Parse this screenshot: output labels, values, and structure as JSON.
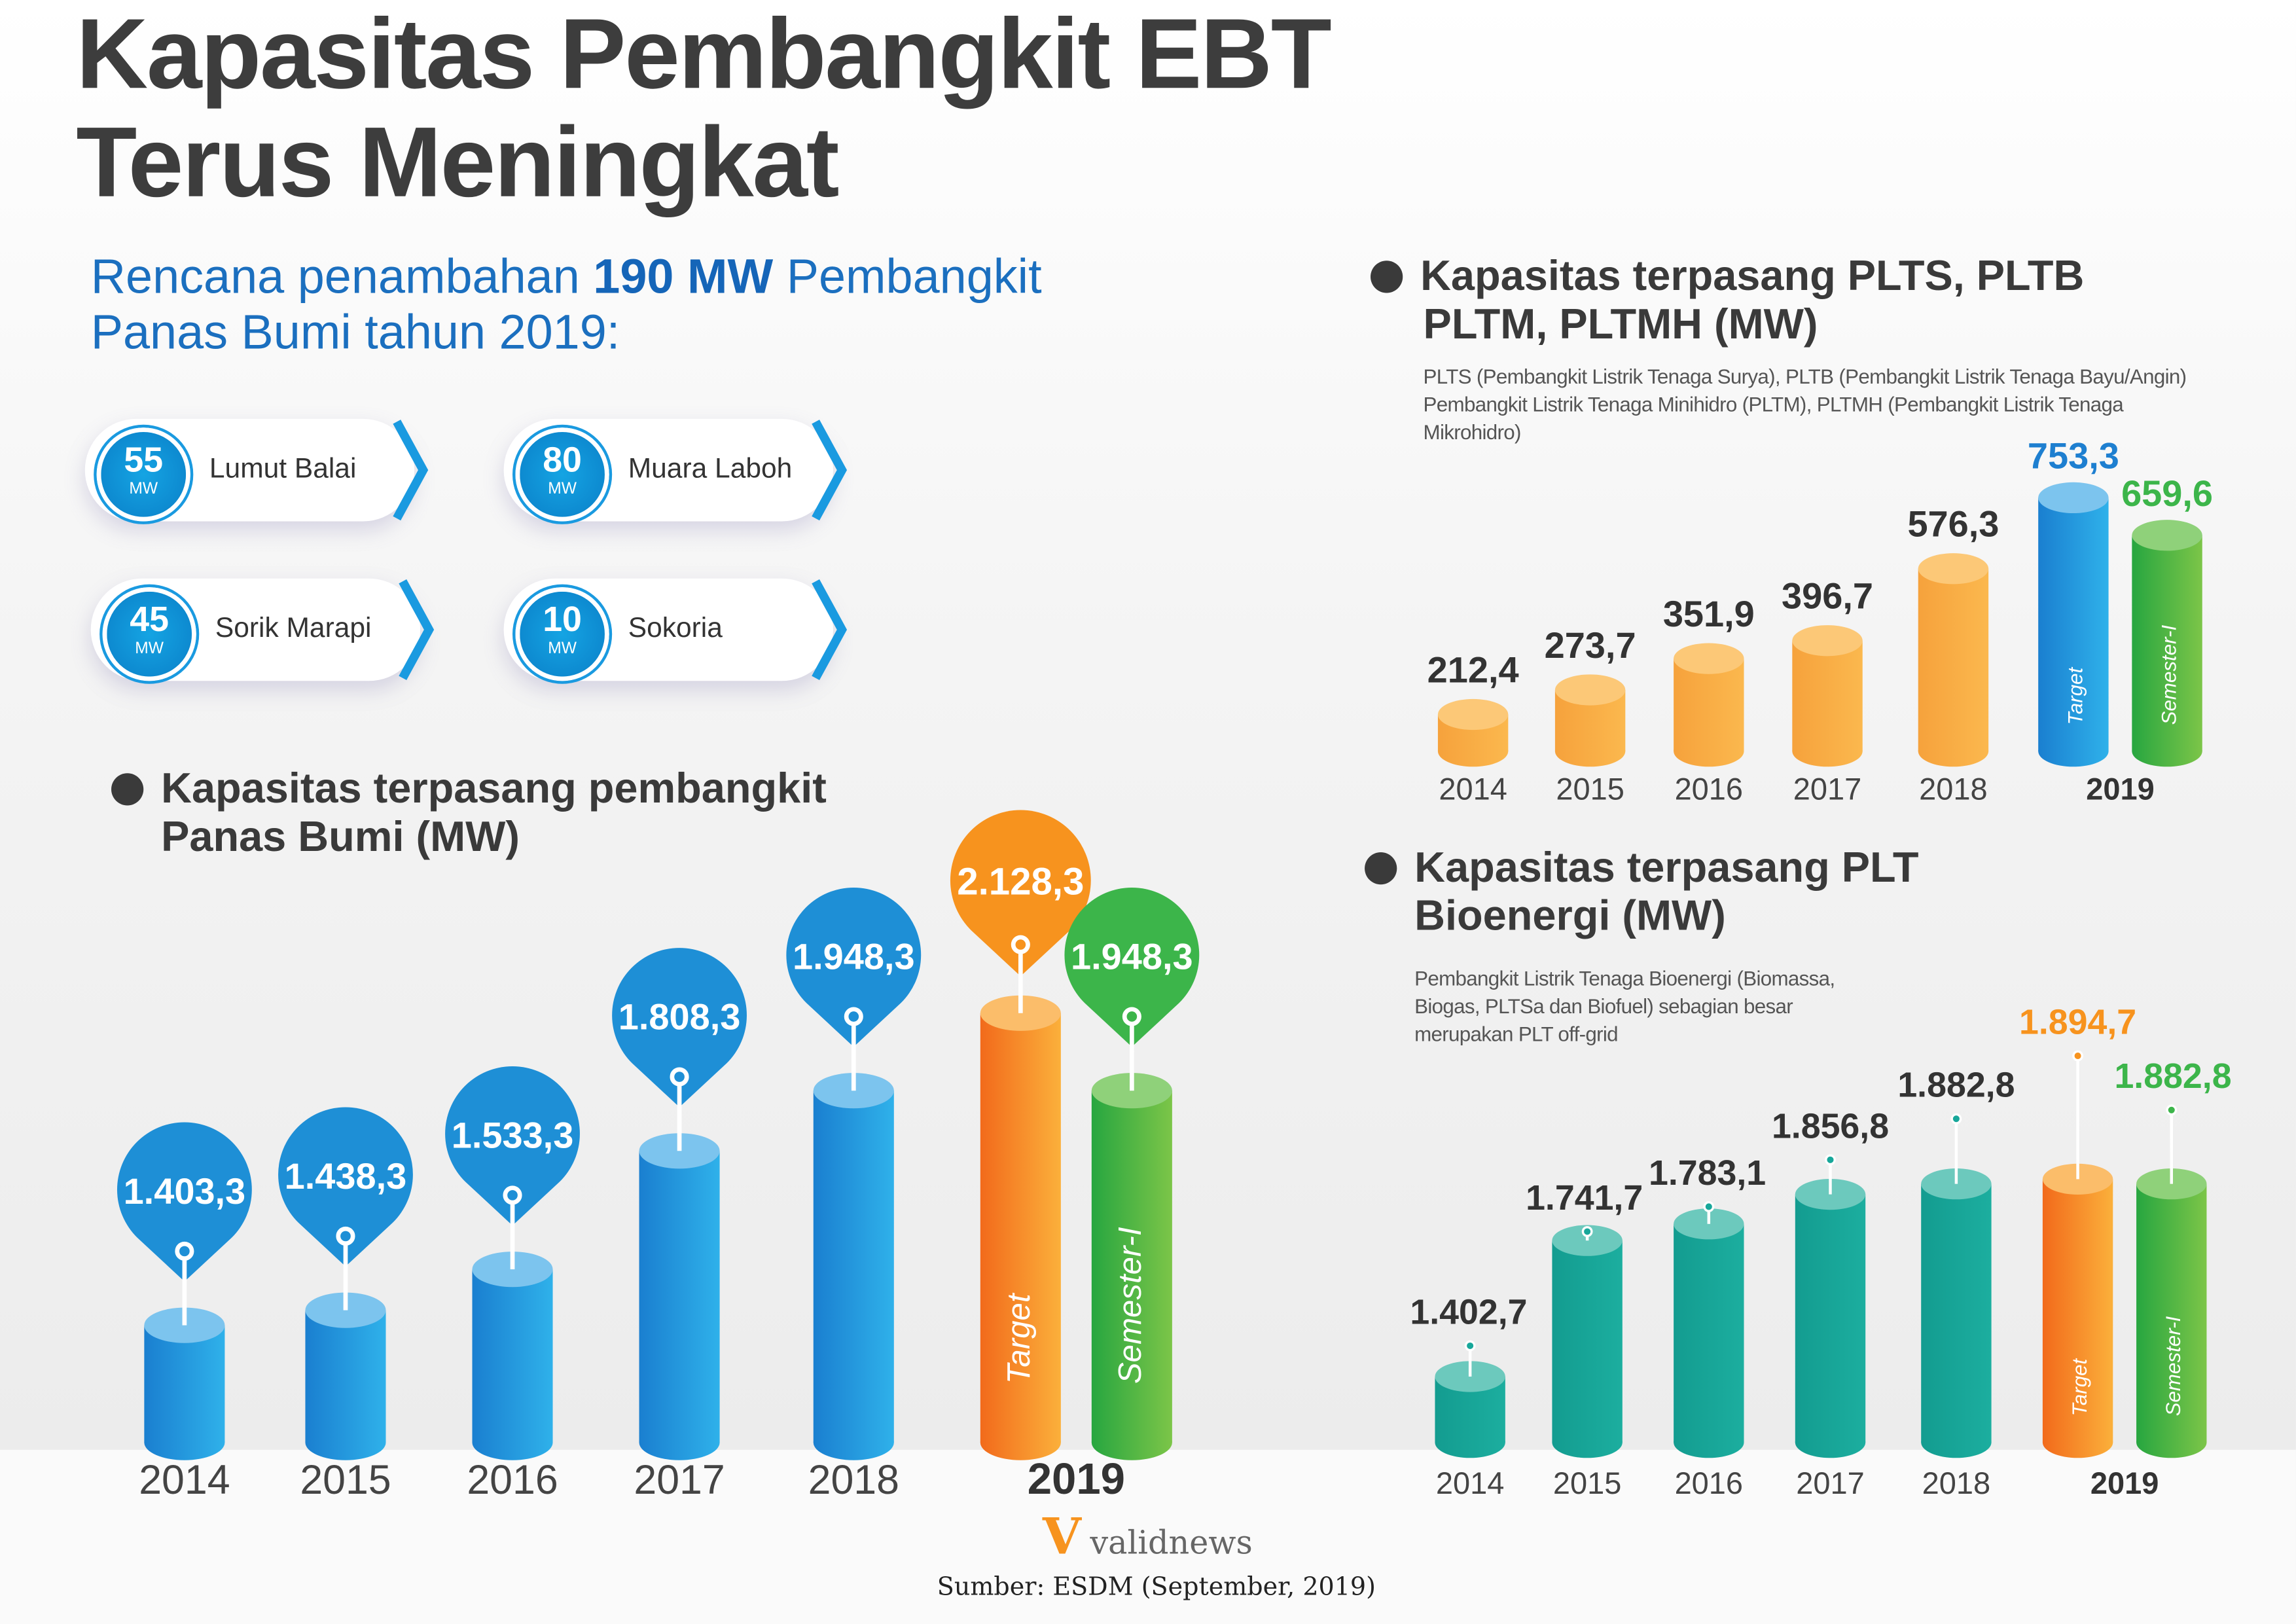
{
  "title": [
    "Kapasitas Pembangkit EBT",
    "Terus Meningkat"
  ],
  "plan": {
    "pre": "Rencana penambahan ",
    "bold": "190 MW",
    "post": " Pembangkit",
    "line2": "Panas Bumi tahun 2019:",
    "items": [
      {
        "mw": "55",
        "unit": "MW",
        "name": "Lumut Balai"
      },
      {
        "mw": "80",
        "unit": "MW",
        "name": "Muara Laboh"
      },
      {
        "mw": "45",
        "unit": "MW",
        "name": "Sorik Marapi"
      },
      {
        "mw": "10",
        "unit": "MW",
        "name": "Sokoria"
      }
    ]
  },
  "sections": {
    "panas": [
      "Kapasitas terpasang pembangkit",
      "Panas Bumi (MW)"
    ],
    "plts": [
      "Kapasitas terpasang PLTS, PLTB",
      "PLTM, PLTMH (MW)"
    ],
    "plts_note": [
      "PLTS (Pembangkit Listrik Tenaga Surya), PLTB (Pembangkit Listrik Tenaga Bayu/Angin)",
      "Pembangkit Listrik Tenaga Minihidro (PLTM), PLTMH (Pembangkit Listrik Tenaga",
      "Mikrohidro)"
    ],
    "bio": [
      "Kapasitas terpasang PLT",
      "Bioenergi (MW)"
    ],
    "bio_note": [
      "Pembangkit Listrik Tenaga Bioenergi (Biomassa,",
      "Biogas, PLTSa dan Biofuel) sebagian besar",
      "merupakan PLT off-grid"
    ]
  },
  "colors": {
    "blue": "#1e90d8",
    "orange": "#f9a23a",
    "teal": "#17a79a",
    "target": "#f7931e",
    "semester": "#3cb54a"
  },
  "chart_data": [
    {
      "type": "bar",
      "title": "Kapasitas terpasang pembangkit Panas Bumi (MW)",
      "categories": [
        "2014",
        "2015",
        "2016",
        "2017",
        "2018"
      ],
      "values": [
        1403.3,
        1438.3,
        1533.3,
        1808.3,
        1948.3
      ],
      "labels": [
        "1.403,3",
        "1.438,3",
        "1.533,3",
        "1.808,3",
        "1.948,3"
      ],
      "year2019": {
        "label": "2019",
        "target": {
          "name": "Target",
          "value": 2128.3,
          "label": "2.128,3"
        },
        "semester": {
          "name": "Semester-I",
          "value": 1948.3,
          "label": "1.948,3"
        }
      }
    },
    {
      "type": "bar",
      "title": "Kapasitas terpasang PLTS, PLTB, PLTM, PLTMH (MW)",
      "categories": [
        "2014",
        "2015",
        "2016",
        "2017",
        "2018"
      ],
      "values": [
        212.4,
        273.7,
        351.9,
        396.7,
        576.3
      ],
      "labels": [
        "212,4",
        "273,7",
        "351,9",
        "396,7",
        "576,3"
      ],
      "year2019": {
        "label": "2019",
        "target": {
          "name": "Target",
          "value": 753.3,
          "label": "753,3"
        },
        "semester": {
          "name": "Semester-I",
          "value": 659.6,
          "label": "659,6"
        }
      }
    },
    {
      "type": "bar",
      "title": "Kapasitas terpasang PLT Bioenergi (MW)",
      "categories": [
        "2014",
        "2015",
        "2016",
        "2017",
        "2018"
      ],
      "values": [
        1402.7,
        1741.7,
        1783.1,
        1856.8,
        1882.8
      ],
      "labels": [
        "1.402,7",
        "1.741,7",
        "1.783,1",
        "1.856,8",
        "1.882,8"
      ],
      "year2019": {
        "label": "2019",
        "target": {
          "name": "Target",
          "value": 1894.7,
          "label": "1.894,7"
        },
        "semester": {
          "name": "Semester-I",
          "value": 1882.8,
          "label": "1.882,8"
        }
      }
    }
  ],
  "brand": "validnews",
  "source": "Sumber: ESDM (September, 2019)"
}
